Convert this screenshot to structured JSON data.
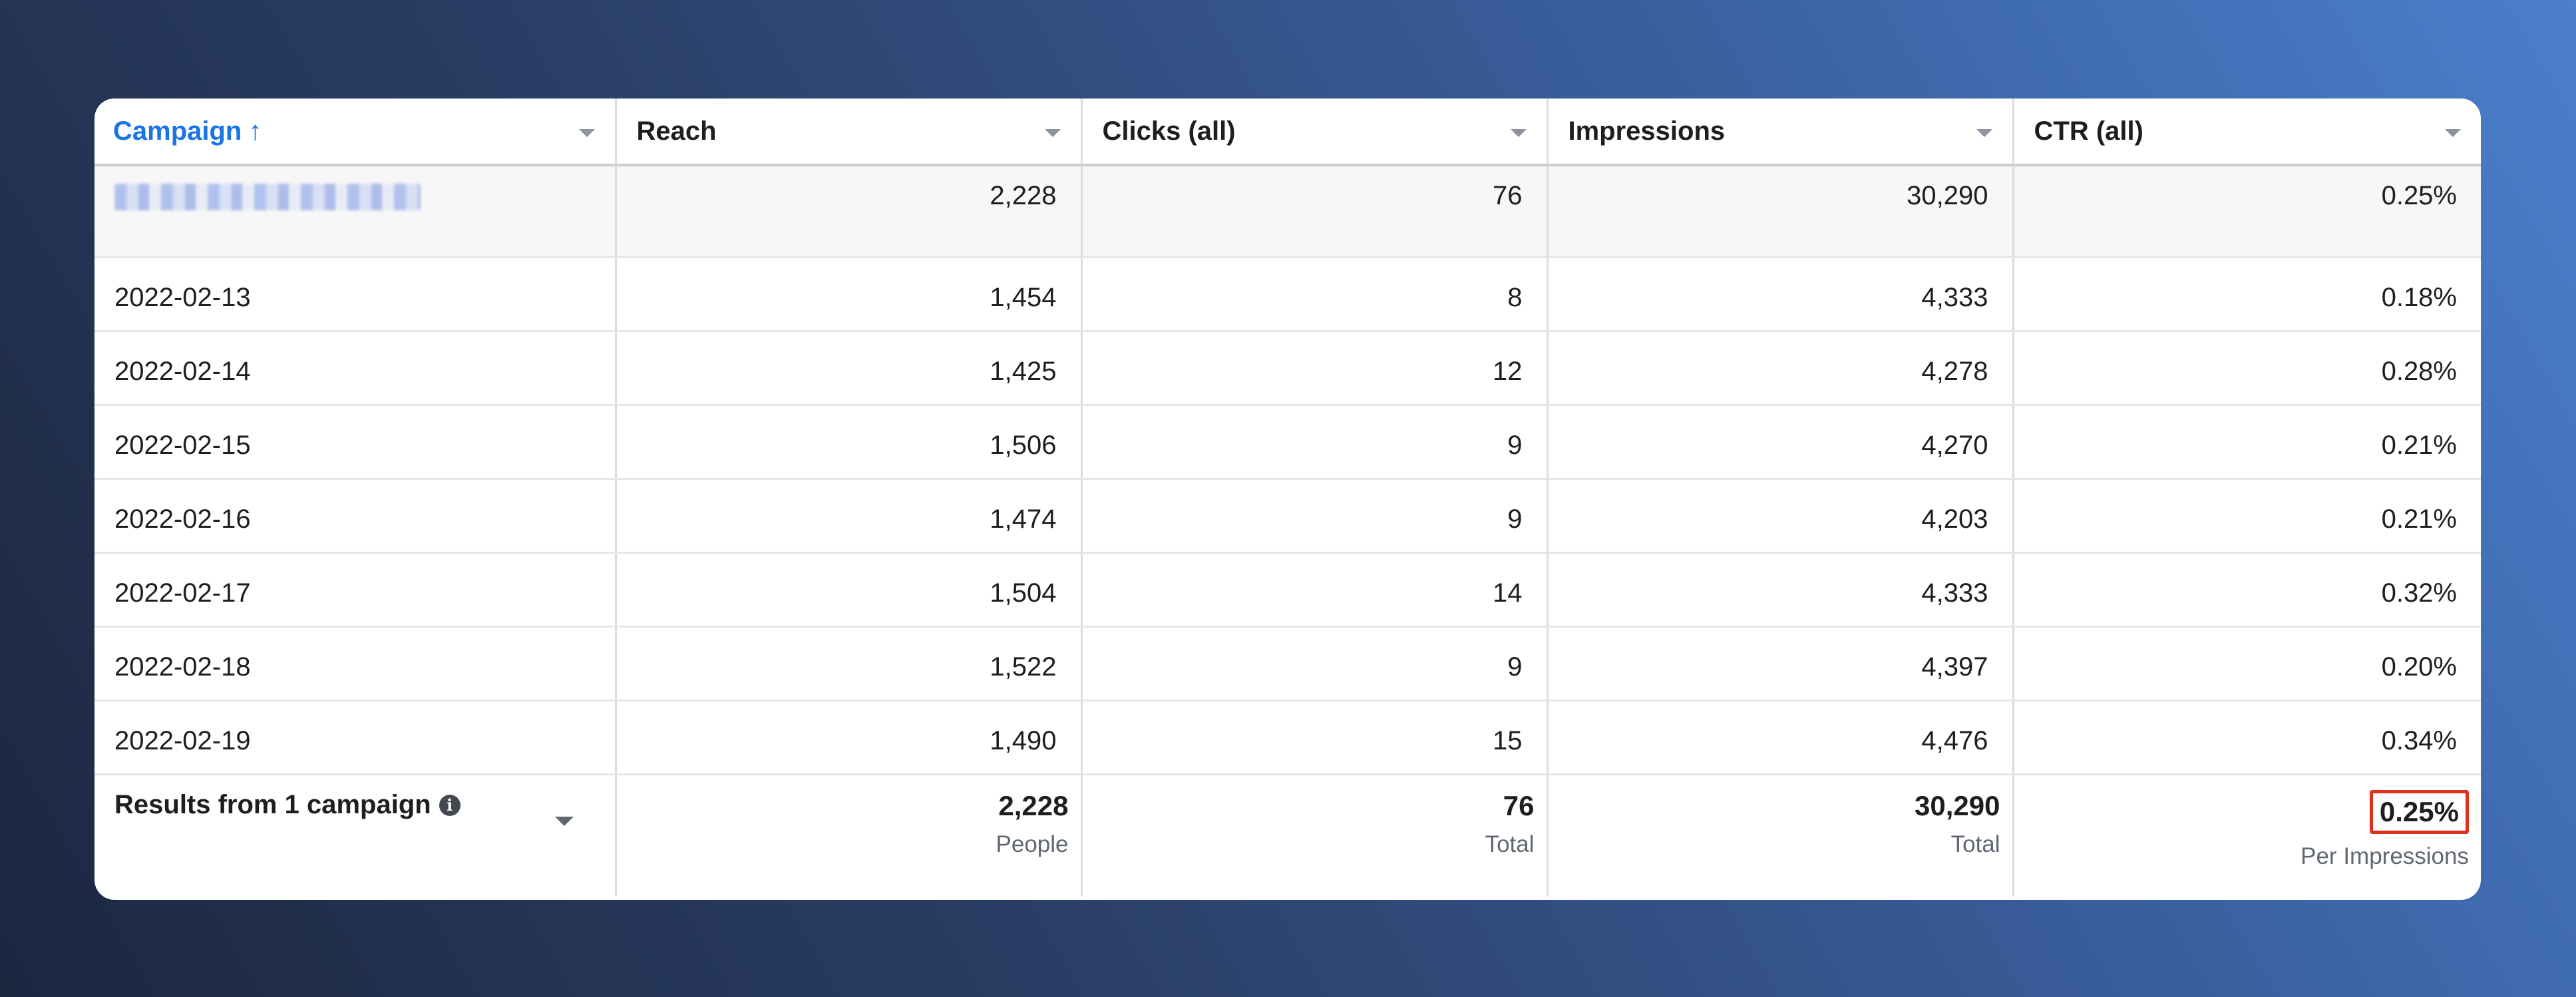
{
  "columns": [
    {
      "label": "Campaign",
      "sorted": true,
      "sort_arrow": "↑"
    },
    {
      "label": "Reach"
    },
    {
      "label": "Clicks (all)"
    },
    {
      "label": "Impressions"
    },
    {
      "label": "CTR (all)"
    }
  ],
  "campaign_row": {
    "name_blurred": true,
    "reach": "2,228",
    "clicks": "76",
    "impressions": "30,290",
    "ctr": "0.25%"
  },
  "rows": [
    {
      "date": "2022-02-13",
      "reach": "1,454",
      "clicks": "8",
      "impressions": "4,333",
      "ctr": "0.18%"
    },
    {
      "date": "2022-02-14",
      "reach": "1,425",
      "clicks": "12",
      "impressions": "4,278",
      "ctr": "0.28%"
    },
    {
      "date": "2022-02-15",
      "reach": "1,506",
      "clicks": "9",
      "impressions": "4,270",
      "ctr": "0.21%"
    },
    {
      "date": "2022-02-16",
      "reach": "1,474",
      "clicks": "9",
      "impressions": "4,203",
      "ctr": "0.21%"
    },
    {
      "date": "2022-02-17",
      "reach": "1,504",
      "clicks": "14",
      "impressions": "4,333",
      "ctr": "0.32%"
    },
    {
      "date": "2022-02-18",
      "reach": "1,522",
      "clicks": "9",
      "impressions": "4,397",
      "ctr": "0.20%"
    },
    {
      "date": "2022-02-19",
      "reach": "1,490",
      "clicks": "15",
      "impressions": "4,476",
      "ctr": "0.34%"
    }
  ],
  "totals": {
    "label": "Results from 1 campaign",
    "info_icon": "info-icon",
    "reach": {
      "value": "2,228",
      "sub": "People"
    },
    "clicks": {
      "value": "76",
      "sub": "Total"
    },
    "impressions": {
      "value": "30,290",
      "sub": "Total"
    },
    "ctr": {
      "value": "0.25%",
      "sub": "Per Impressions",
      "highlight_color": "#e0301e"
    }
  },
  "colors": {
    "sorted_header": "#1b74e4",
    "text": "#1c1e21",
    "muted": "#606770"
  }
}
